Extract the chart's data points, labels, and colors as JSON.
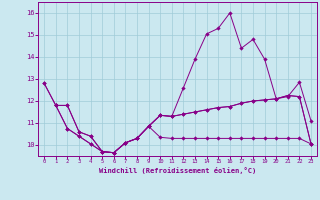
{
  "xlabel": "Windchill (Refroidissement éolien,°C)",
  "background_color": "#cbe8f0",
  "line_color": "#880088",
  "grid_color": "#a0ccd8",
  "xlim": [
    -0.5,
    23.5
  ],
  "ylim": [
    9.5,
    16.5
  ],
  "xticks": [
    0,
    1,
    2,
    3,
    4,
    5,
    6,
    7,
    8,
    9,
    10,
    11,
    12,
    13,
    14,
    15,
    16,
    17,
    18,
    19,
    20,
    21,
    22,
    23
  ],
  "yticks": [
    10,
    11,
    12,
    13,
    14,
    15,
    16
  ],
  "series1_x": [
    0,
    1,
    2,
    3,
    4,
    5,
    6,
    7,
    8,
    9,
    10,
    11,
    12,
    13,
    14,
    15,
    16,
    17,
    18,
    19,
    20,
    21,
    22,
    23
  ],
  "series1_y": [
    12.8,
    11.8,
    11.8,
    10.6,
    10.4,
    9.7,
    9.65,
    10.1,
    10.3,
    10.85,
    11.35,
    11.3,
    12.6,
    13.9,
    15.05,
    15.3,
    16.0,
    14.4,
    14.8,
    13.9,
    12.1,
    12.2,
    12.85,
    11.1
  ],
  "series2_x": [
    0,
    1,
    2,
    3,
    4,
    5,
    6,
    7,
    8,
    9,
    10,
    11,
    12,
    13,
    14,
    15,
    16,
    17,
    18,
    19,
    20,
    21,
    22,
    23
  ],
  "series2_y": [
    12.8,
    11.8,
    11.8,
    10.6,
    10.4,
    9.7,
    9.65,
    10.1,
    10.3,
    10.85,
    11.35,
    11.3,
    11.4,
    11.5,
    11.6,
    11.7,
    11.75,
    11.9,
    12.0,
    12.05,
    12.1,
    12.25,
    12.2,
    10.05
  ],
  "series3_x": [
    1,
    2,
    3,
    4,
    5,
    6,
    7,
    8,
    9,
    10,
    11,
    12,
    13,
    14,
    15,
    16,
    17,
    18,
    19,
    20,
    21,
    22,
    23
  ],
  "series3_y": [
    11.8,
    10.75,
    10.4,
    10.05,
    9.7,
    9.65,
    10.1,
    10.3,
    10.85,
    10.35,
    10.3,
    10.3,
    10.3,
    10.3,
    10.3,
    10.3,
    10.3,
    10.3,
    10.3,
    10.3,
    10.3,
    10.3,
    10.05
  ],
  "series4_x": [
    1,
    2,
    3,
    4,
    5,
    6,
    7,
    8,
    9,
    10,
    11,
    12,
    13,
    14,
    15,
    16,
    17,
    18,
    19,
    20,
    21,
    22,
    23
  ],
  "series4_y": [
    11.8,
    10.75,
    10.4,
    10.05,
    9.7,
    9.65,
    10.1,
    10.3,
    10.85,
    11.35,
    11.3,
    11.4,
    11.5,
    11.6,
    11.7,
    11.75,
    11.9,
    12.0,
    12.05,
    12.1,
    12.25,
    12.2,
    10.05
  ]
}
